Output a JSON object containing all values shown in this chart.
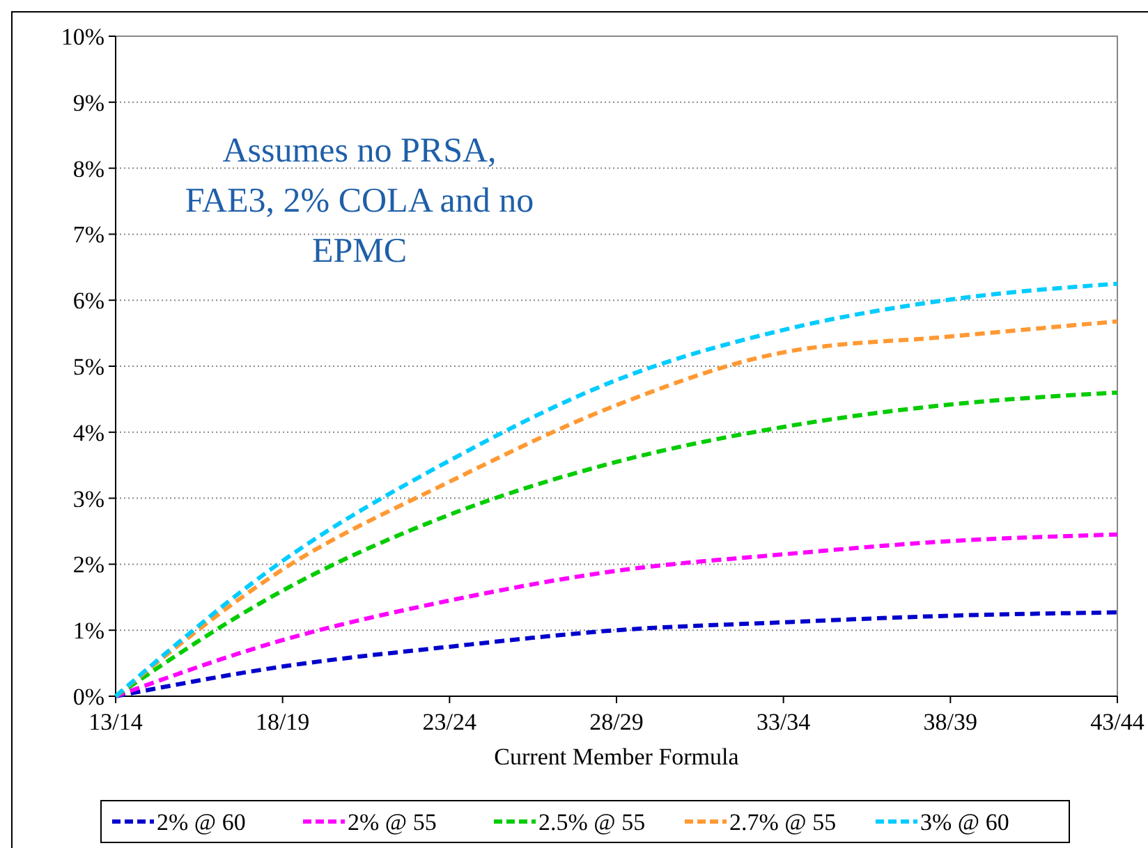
{
  "chart_data": {
    "type": "line",
    "xlabel": "Current Member Formula",
    "categories": [
      "13/14",
      "18/19",
      "23/24",
      "28/29",
      "33/34",
      "38/39",
      "43/44"
    ],
    "ylim": [
      0,
      10
    ],
    "yticks": [
      {
        "value": 0,
        "label": "0%"
      },
      {
        "value": 1,
        "label": "1%"
      },
      {
        "value": 2,
        "label": "2%"
      },
      {
        "value": 3,
        "label": "3%"
      },
      {
        "value": 4,
        "label": "4%"
      },
      {
        "value": 5,
        "label": "5%"
      },
      {
        "value": 6,
        "label": "6%"
      },
      {
        "value": 7,
        "label": "7%"
      },
      {
        "value": 8,
        "label": "8%"
      },
      {
        "value": 9,
        "label": "9%"
      },
      {
        "value": 10,
        "label": "10%"
      }
    ],
    "grid": "y",
    "legend": "bottom",
    "line_style": "dashed",
    "marker": "none",
    "annotations": [
      "Assumes no PRSA,\nFAE3, 2% COLA and no\nEPMC"
    ],
    "series": [
      {
        "name": "2% @ 60",
        "color": "#0000cc",
        "values": [
          0,
          0.45,
          0.75,
          1.0,
          1.12,
          1.22,
          1.27
        ]
      },
      {
        "name": "2% @ 55",
        "color": "#ff00ff",
        "values": [
          0,
          0.85,
          1.45,
          1.9,
          2.15,
          2.35,
          2.45
        ]
      },
      {
        "name": "2.5% @ 55",
        "color": "#00cc00",
        "values": [
          0,
          1.6,
          2.75,
          3.55,
          4.08,
          4.42,
          4.6
        ]
      },
      {
        "name": "2.7% @ 55",
        "color": "#ff9933",
        "values": [
          0,
          1.92,
          3.25,
          4.41,
          5.21,
          5.45,
          5.68
        ]
      },
      {
        "name": "3% @ 60",
        "color": "#00ccff",
        "values": [
          0,
          2.05,
          3.57,
          4.79,
          5.55,
          6.01,
          6.25
        ]
      }
    ]
  }
}
